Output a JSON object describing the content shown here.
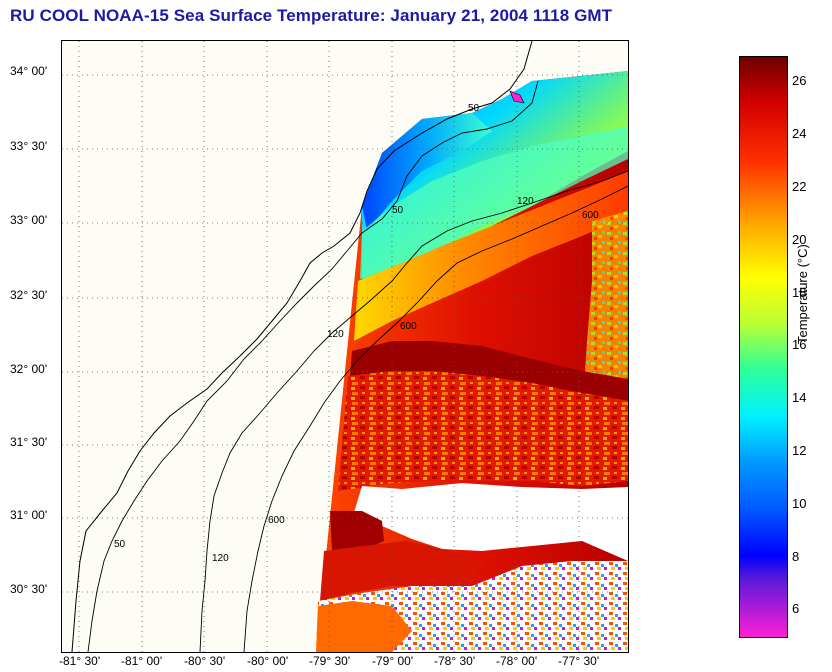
{
  "title": "RU COOL  NOAA-15  Sea Surface Temperature:  January 21, 2004 1118 GMT",
  "map": {
    "lat_labels": [
      "34° 00'",
      "33° 30'",
      "33° 00'",
      "32° 30'",
      "32° 00'",
      "31° 30'",
      "31° 00'",
      "30° 30'"
    ],
    "lon_labels": [
      "-81° 30'",
      "-81° 00'",
      "-80° 30'",
      "-80° 00'",
      "-79° 30'",
      "-79° 00'",
      "-78° 30'",
      "-78° 00'",
      "-77° 30'"
    ],
    "contour_labels": [
      "50",
      "120",
      "600"
    ],
    "land_color": "#fdfdf6",
    "cloud_color": "#ffffff"
  },
  "colorbar": {
    "label": "Temperature (°C)",
    "ticks": [
      "26",
      "24",
      "22",
      "20",
      "18",
      "16",
      "14",
      "12",
      "10",
      "8",
      "6"
    ],
    "range": [
      5,
      27
    ],
    "colors": [
      "#ff1fd5",
      "#6a1bd8",
      "#0000ff",
      "#0098ff",
      "#00f0ff",
      "#2cff9a",
      "#baff33",
      "#ffff00",
      "#ffa000",
      "#ff3000",
      "#d40000",
      "#6e0000"
    ]
  }
}
